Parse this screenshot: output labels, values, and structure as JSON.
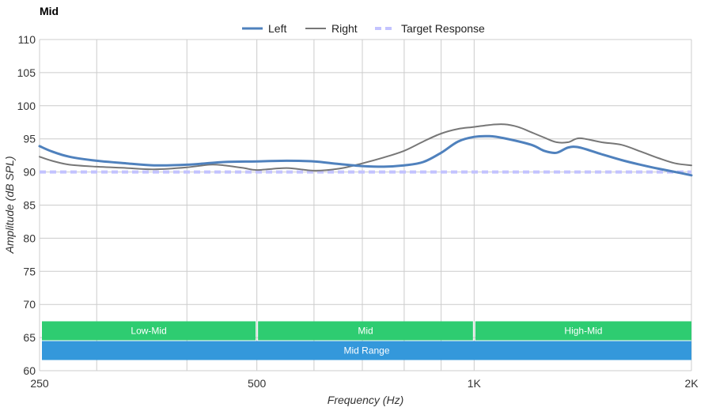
{
  "chart_data": {
    "type": "line",
    "title": "Mid",
    "xlabel": "Frequency (Hz)",
    "ylabel": "Amplitude (dB SPL)",
    "x_scale": "log",
    "xlim": [
      250,
      2000
    ],
    "ylim": [
      60,
      110
    ],
    "y_ticks": [
      60,
      65,
      70,
      75,
      80,
      85,
      90,
      95,
      100,
      105,
      110
    ],
    "x_ticks": [
      {
        "value": 250,
        "label": "250"
      },
      {
        "value": 500,
        "label": "500"
      },
      {
        "value": 1000,
        "label": "1K"
      },
      {
        "value": 2000,
        "label": "2K"
      }
    ],
    "x_minor_gridlines": [
      300,
      400,
      600,
      700,
      800,
      900
    ],
    "grid": true,
    "legend_position": "top-center",
    "series": [
      {
        "name": "Left",
        "color": "#4f81bd",
        "style": "solid-thick",
        "x": [
          250,
          260,
          275,
          300,
          330,
          360,
          400,
          450,
          500,
          550,
          600,
          650,
          700,
          750,
          800,
          850,
          900,
          950,
          1000,
          1050,
          1100,
          1200,
          1250,
          1300,
          1350,
          1400,
          1500,
          1600,
          1700,
          1800,
          1900,
          2000
        ],
        "y": [
          93.9,
          93.1,
          92.3,
          91.7,
          91.3,
          91.0,
          91.1,
          91.5,
          91.6,
          91.7,
          91.6,
          91.2,
          90.9,
          90.8,
          91.0,
          91.5,
          92.9,
          94.6,
          95.3,
          95.4,
          95.1,
          94.1,
          93.2,
          92.9,
          93.7,
          93.7,
          92.7,
          91.8,
          91.1,
          90.5,
          90.0,
          89.5
        ]
      },
      {
        "name": "Right",
        "color": "#777777",
        "style": "solid-thin",
        "x": [
          250,
          260,
          275,
          300,
          330,
          360,
          400,
          430,
          450,
          480,
          500,
          550,
          600,
          650,
          700,
          750,
          800,
          850,
          900,
          950,
          1000,
          1050,
          1100,
          1150,
          1200,
          1250,
          1300,
          1350,
          1400,
          1500,
          1600,
          1700,
          1800,
          1900,
          2000
        ],
        "y": [
          92.3,
          91.7,
          91.1,
          90.8,
          90.6,
          90.4,
          90.7,
          91.1,
          91.0,
          90.6,
          90.3,
          90.6,
          90.2,
          90.5,
          91.3,
          92.2,
          93.2,
          94.6,
          95.8,
          96.5,
          96.8,
          97.1,
          97.2,
          96.8,
          96.0,
          95.2,
          94.5,
          94.5,
          95.1,
          94.5,
          94.1,
          93.1,
          92.1,
          91.3,
          91.0
        ]
      },
      {
        "name": "Target Response",
        "color": "#c3c3ff",
        "style": "dashed",
        "x": [
          250,
          2000
        ],
        "y": [
          90,
          90
        ]
      }
    ],
    "bands": [
      {
        "label": "Low-Mid",
        "from": 250,
        "to": 500,
        "color": "#2ecc71",
        "row": 0
      },
      {
        "label": "Mid",
        "from": 500,
        "to": 1000,
        "color": "#2ecc71",
        "row": 0
      },
      {
        "label": "High-Mid",
        "from": 1000,
        "to": 2000,
        "color": "#2ecc71",
        "row": 0
      },
      {
        "label": "Mid Range",
        "from": 250,
        "to": 2000,
        "color": "#3498db",
        "row": 1
      }
    ]
  }
}
